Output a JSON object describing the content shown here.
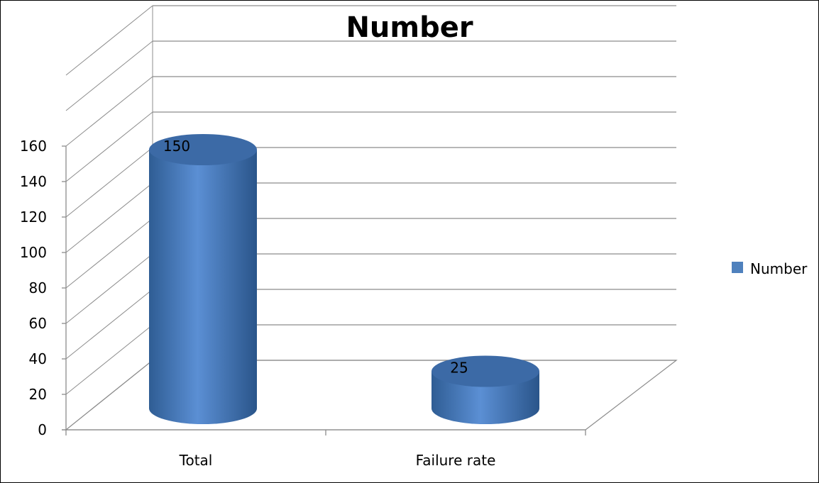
{
  "chart_data": {
    "type": "bar",
    "title": "Number",
    "categories": [
      "Total",
      "Failure rate"
    ],
    "series": [
      {
        "name": "Number",
        "values": [
          150,
          25
        ],
        "color": "#4F81BD"
      }
    ],
    "data_labels": [
      "150",
      "25"
    ],
    "ylim": [
      0,
      160
    ],
    "yticks": [
      "0",
      "20",
      "40",
      "60",
      "80",
      "100",
      "120",
      "140",
      "160"
    ],
    "xlabel": "",
    "ylabel": "",
    "grid": true,
    "legend_position": "right",
    "style": "3d-cylinder"
  }
}
